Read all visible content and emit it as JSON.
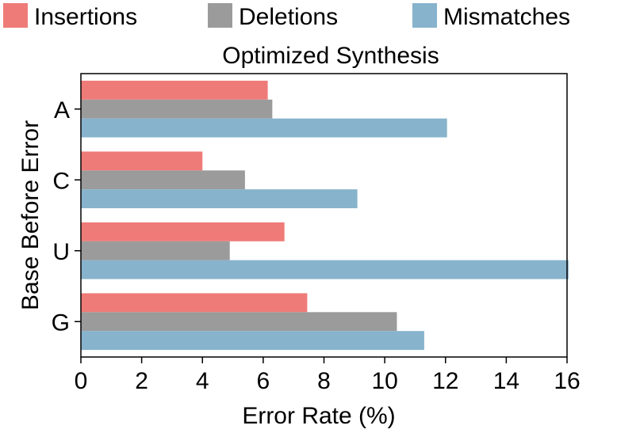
{
  "chart_data": {
    "type": "bar",
    "orientation": "horizontal",
    "title": "Optimized Synthesis",
    "xlabel": "Error Rate (%)",
    "ylabel": "Base Before Error",
    "categories": [
      "A",
      "C",
      "U",
      "G"
    ],
    "xlim": [
      0,
      16
    ],
    "xticks": [
      "0",
      "2",
      "4",
      "6",
      "8",
      "10",
      "12",
      "14",
      "16"
    ],
    "grid": false,
    "legend_position": "top",
    "series": [
      {
        "name": "Insertions",
        "color": "#ef7b78",
        "values": [
          6.15,
          4.0,
          6.7,
          7.45
        ]
      },
      {
        "name": "Deletions",
        "color": "#9b9b9b",
        "values": [
          6.3,
          5.4,
          4.9,
          10.4
        ]
      },
      {
        "name": "Mismatches",
        "color": "#87b3cc",
        "values": [
          12.05,
          9.1,
          16.05,
          11.3
        ]
      }
    ]
  }
}
